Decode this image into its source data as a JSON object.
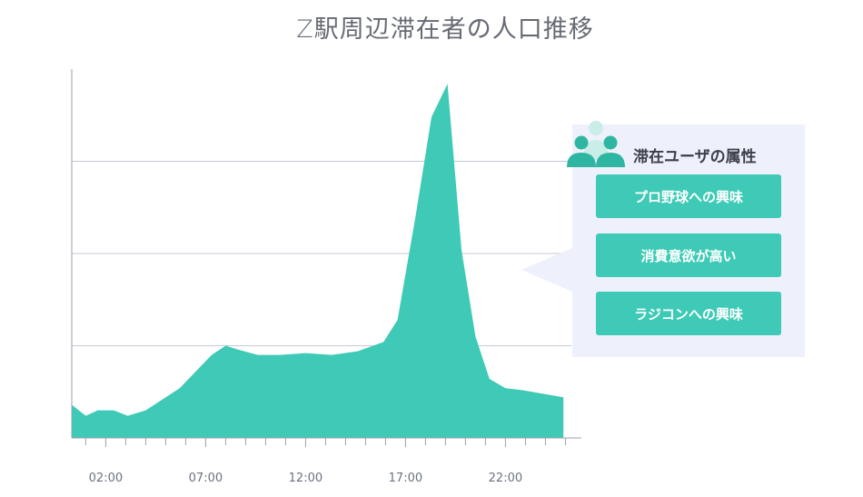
{
  "chart_data": {
    "type": "area",
    "title": "Z駅周辺滞在者の人口推移",
    "xlabel": "",
    "ylabel": "",
    "x_tick_labels": [
      "02:00",
      "07:00",
      "12:00",
      "17:00",
      "22:00"
    ],
    "x_tick_hours": [
      2,
      7,
      12,
      17,
      22
    ],
    "x": [
      0.3,
      1.0,
      1.6,
      2.4,
      3.1,
      4.0,
      5.7,
      7.3,
      8.0,
      8.6,
      9.6,
      10.7,
      12.0,
      13.3,
      14.6,
      15.9,
      16.6,
      17.5,
      18.3,
      19.1,
      19.8,
      20.5,
      21.2,
      22.0,
      22.8,
      24.9
    ],
    "values": [
      9,
      6,
      7.5,
      7.5,
      6,
      7.5,
      13.5,
      22.5,
      25,
      24,
      22.5,
      22.5,
      23,
      22.5,
      23.5,
      26,
      32,
      60,
      87,
      96,
      51,
      27.5,
      16,
      13.5,
      13,
      11
    ],
    "x_range": [
      0.3,
      25.3
    ],
    "ylim": [
      0,
      100
    ],
    "grid": true,
    "color": "#3ecab6"
  },
  "panel": {
    "heading": "滞在ユーザの属性",
    "attributes": [
      "プロ野球への興味",
      "消費意欲が高い",
      "ラジコンへの興味"
    ],
    "icon": "users-group-icon",
    "background": "#eef1fb",
    "button_color": "#3ecab6"
  }
}
